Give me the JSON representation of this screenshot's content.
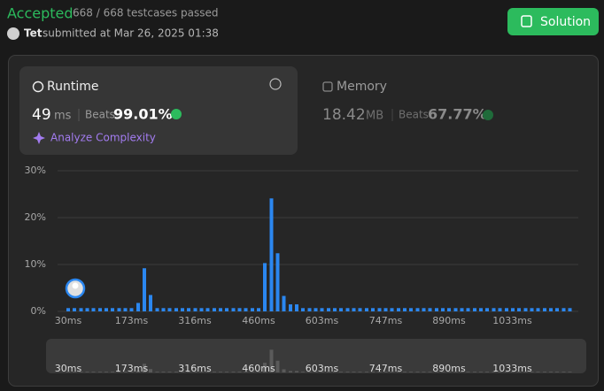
{
  "header": {
    "status": "Accepted",
    "testcases": "668 / 668 testcases passed",
    "user": "Tet",
    "submitted": "submitted at Mar 26, 2025 01:38",
    "button": "Solution"
  },
  "runtime": {
    "title": "Runtime",
    "value": 49,
    "unit": "ms",
    "beats_label": "Beats",
    "beats": "99.01%",
    "analyze": "Analyze Complexity"
  },
  "memory": {
    "title": "Memory",
    "value": 18.42,
    "unit": "MB",
    "beats_label": "Beats",
    "beats": "67.77%"
  },
  "chart_data": {
    "type": "bar",
    "color": "#2b87f0",
    "grid": true,
    "x": [
      30,
      44,
      59,
      73,
      87,
      102,
      116,
      130,
      145,
      159,
      173,
      188,
      202,
      216,
      231,
      245,
      259,
      274,
      288,
      302,
      317,
      331,
      345,
      360,
      374,
      388,
      403,
      417,
      431,
      446,
      460,
      474,
      489,
      503,
      517,
      532,
      546,
      560,
      575,
      589,
      603,
      618,
      632,
      646,
      661,
      675,
      689,
      704,
      718,
      733,
      747,
      761,
      776,
      790,
      804,
      819,
      833,
      847,
      862,
      876,
      890,
      905,
      919,
      933,
      948,
      962,
      976,
      991,
      1005,
      1020,
      1034,
      1048,
      1063,
      1077,
      1091,
      1106,
      1120,
      1134,
      1149,
      1163
    ],
    "values": [
      0.7,
      0.7,
      0.7,
      0.7,
      0.7,
      0.7,
      0.7,
      0.7,
      0.7,
      0.7,
      0.7,
      1.8,
      9.2,
      3.5,
      0.7,
      0.7,
      0.7,
      0.7,
      0.7,
      0.7,
      0.7,
      0.7,
      0.7,
      0.7,
      0.7,
      0.7,
      0.7,
      0.7,
      0.7,
      0.7,
      0.7,
      10.3,
      24.1,
      12.4,
      3.3,
      1.5,
      1.5,
      0.7,
      0.7,
      0.7,
      0.7,
      0.7,
      0.7,
      0.7,
      0.7,
      0.7,
      0.7,
      0.7,
      0.7,
      0.7,
      0.7,
      0.7,
      0.7,
      0.7,
      0.7,
      0.7,
      0.7,
      0.7,
      0.7,
      0.7,
      0.7,
      0.7,
      0.7,
      0.7,
      0.7,
      0.7,
      0.7,
      0.7,
      0.7,
      0.7,
      0.7,
      0.7,
      0.7,
      0.7,
      0.7,
      0.7,
      0.7,
      0.7,
      0.7,
      0.7
    ],
    "xlim": [
      6,
      1182
    ],
    "xticks": [
      {
        "value": 30,
        "label": "30ms"
      },
      {
        "value": 173,
        "label": "173ms"
      },
      {
        "value": 316,
        "label": "316ms"
      },
      {
        "value": 460,
        "label": "460ms"
      },
      {
        "value": 603,
        "label": "603ms"
      },
      {
        "value": 747,
        "label": "747ms"
      },
      {
        "value": 890,
        "label": "890ms"
      },
      {
        "value": 1033,
        "label": "1033ms"
      }
    ],
    "ylim": [
      0,
      30
    ],
    "yticks": [
      {
        "value": 0,
        "label": "0%"
      },
      {
        "value": 10,
        "label": "10%"
      },
      {
        "value": 20,
        "label": "20%"
      },
      {
        "value": 30,
        "label": "30%"
      }
    ]
  }
}
